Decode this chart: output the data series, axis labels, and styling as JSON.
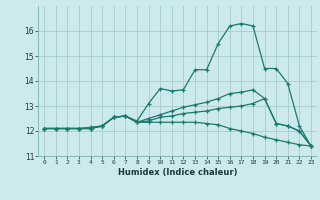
{
  "xlabel": "Humidex (Indice chaleur)",
  "xlim": [
    -0.5,
    23.5
  ],
  "ylim": [
    11,
    17
  ],
  "yticks": [
    11,
    12,
    13,
    14,
    15,
    16
  ],
  "xticks": [
    0,
    1,
    2,
    3,
    4,
    5,
    6,
    7,
    8,
    9,
    10,
    11,
    12,
    13,
    14,
    15,
    16,
    17,
    18,
    19,
    20,
    21,
    22,
    23
  ],
  "background_color": "#cce9ec",
  "grid_color": "#aacccc",
  "line_color": "#1a7a6e",
  "series": [
    [
      12.1,
      12.1,
      12.1,
      12.1,
      12.15,
      12.2,
      12.55,
      12.6,
      12.4,
      13.1,
      13.7,
      13.6,
      13.65,
      14.45,
      14.45,
      15.5,
      16.2,
      16.3,
      16.2,
      14.5,
      14.5,
      13.9,
      12.2,
      11.4
    ],
    [
      12.1,
      12.1,
      12.1,
      12.1,
      12.1,
      12.2,
      12.55,
      12.6,
      12.35,
      12.5,
      12.65,
      12.8,
      12.95,
      13.05,
      13.15,
      13.3,
      13.5,
      13.55,
      13.65,
      13.3,
      12.3,
      12.2,
      12.0,
      11.4
    ],
    [
      12.1,
      12.1,
      12.1,
      12.1,
      12.1,
      12.2,
      12.55,
      12.6,
      12.35,
      12.4,
      12.55,
      12.6,
      12.7,
      12.75,
      12.8,
      12.9,
      12.95,
      13.0,
      13.1,
      13.3,
      12.3,
      12.2,
      12.0,
      11.4
    ],
    [
      12.1,
      12.1,
      12.1,
      12.1,
      12.1,
      12.2,
      12.55,
      12.6,
      12.35,
      12.35,
      12.35,
      12.35,
      12.35,
      12.35,
      12.3,
      12.25,
      12.1,
      12.0,
      11.9,
      11.75,
      11.65,
      11.55,
      11.45,
      11.4
    ]
  ]
}
